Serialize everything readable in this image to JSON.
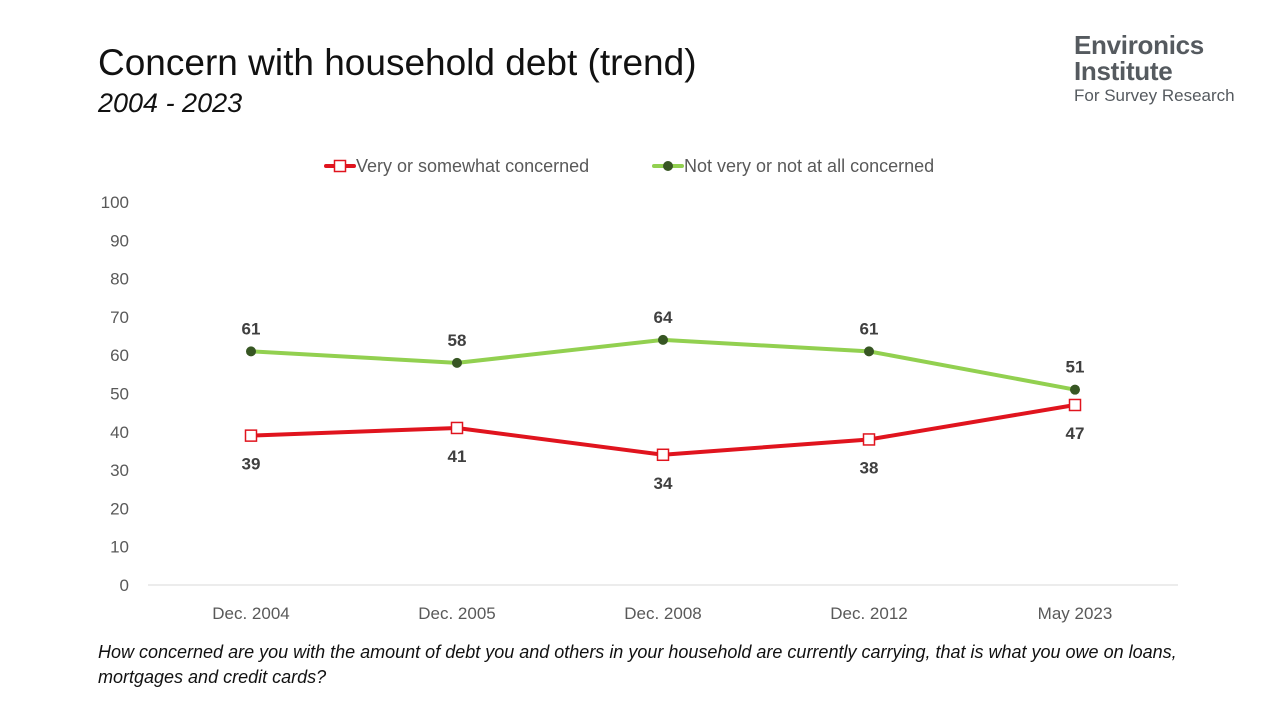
{
  "header": {
    "title": "Concern with household debt (trend)",
    "subtitle": "2004 - 2023"
  },
  "logo": {
    "line1": "Environics",
    "line2": "Institute",
    "line3": "For Survey Research"
  },
  "question": "How concerned are you with the amount of debt you and others in your household are currently carrying, that is what you owe on loans, mortgages and credit cards?",
  "chart_data": {
    "type": "line",
    "categories": [
      "Dec. 2004",
      "Dec. 2005",
      "Dec. 2008",
      "Dec. 2012",
      "May 2023"
    ],
    "series": [
      {
        "name": "Very or somewhat concerned",
        "values": [
          39,
          41,
          34,
          38,
          47
        ],
        "color": "#e0141e",
        "marker": "open-square",
        "label_position": "below"
      },
      {
        "name": "Not very or not at all concerned",
        "values": [
          61,
          58,
          64,
          61,
          51
        ],
        "color": "#92d050",
        "marker": "dark-circle",
        "label_position": "above"
      }
    ],
    "ylim": [
      0,
      100
    ],
    "yticks": [
      0,
      10,
      20,
      30,
      40,
      50,
      60,
      70,
      80,
      90,
      100
    ],
    "grid": false,
    "legend": "top-center",
    "xlabel": "",
    "ylabel": ""
  }
}
